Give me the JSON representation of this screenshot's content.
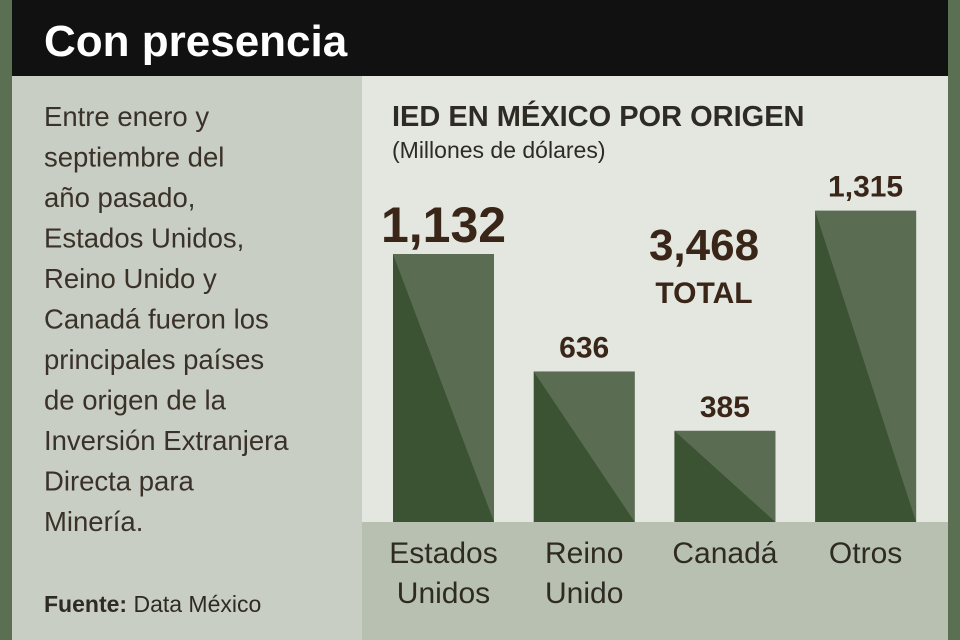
{
  "header": {
    "title": "Con presencia"
  },
  "text": {
    "lines": [
      "Entre enero y",
      "septiembre del",
      "año pasado,",
      "Estados Unidos,",
      "Reino Unido y",
      "Canadá fueron los",
      "principales países",
      "de origen de la",
      "Inversión Extranjera",
      "Directa para",
      "Minería."
    ],
    "source_label": "Fuente:",
    "source": "Data México"
  },
  "chart_data": {
    "type": "bar",
    "title": "IED EN MÉXICO POR ORIGEN",
    "subtitle": "(Millones de dólares)",
    "categories": [
      "Estados Unidos",
      "Reino Unido",
      "Canadá",
      "Otros"
    ],
    "values": [
      1132,
      636,
      385,
      1315
    ],
    "value_labels": [
      "1,132",
      "636",
      "385",
      "1,315"
    ],
    "color": "#3b5233",
    "annotations": [
      "3,468",
      "TOTAL"
    ]
  }
}
